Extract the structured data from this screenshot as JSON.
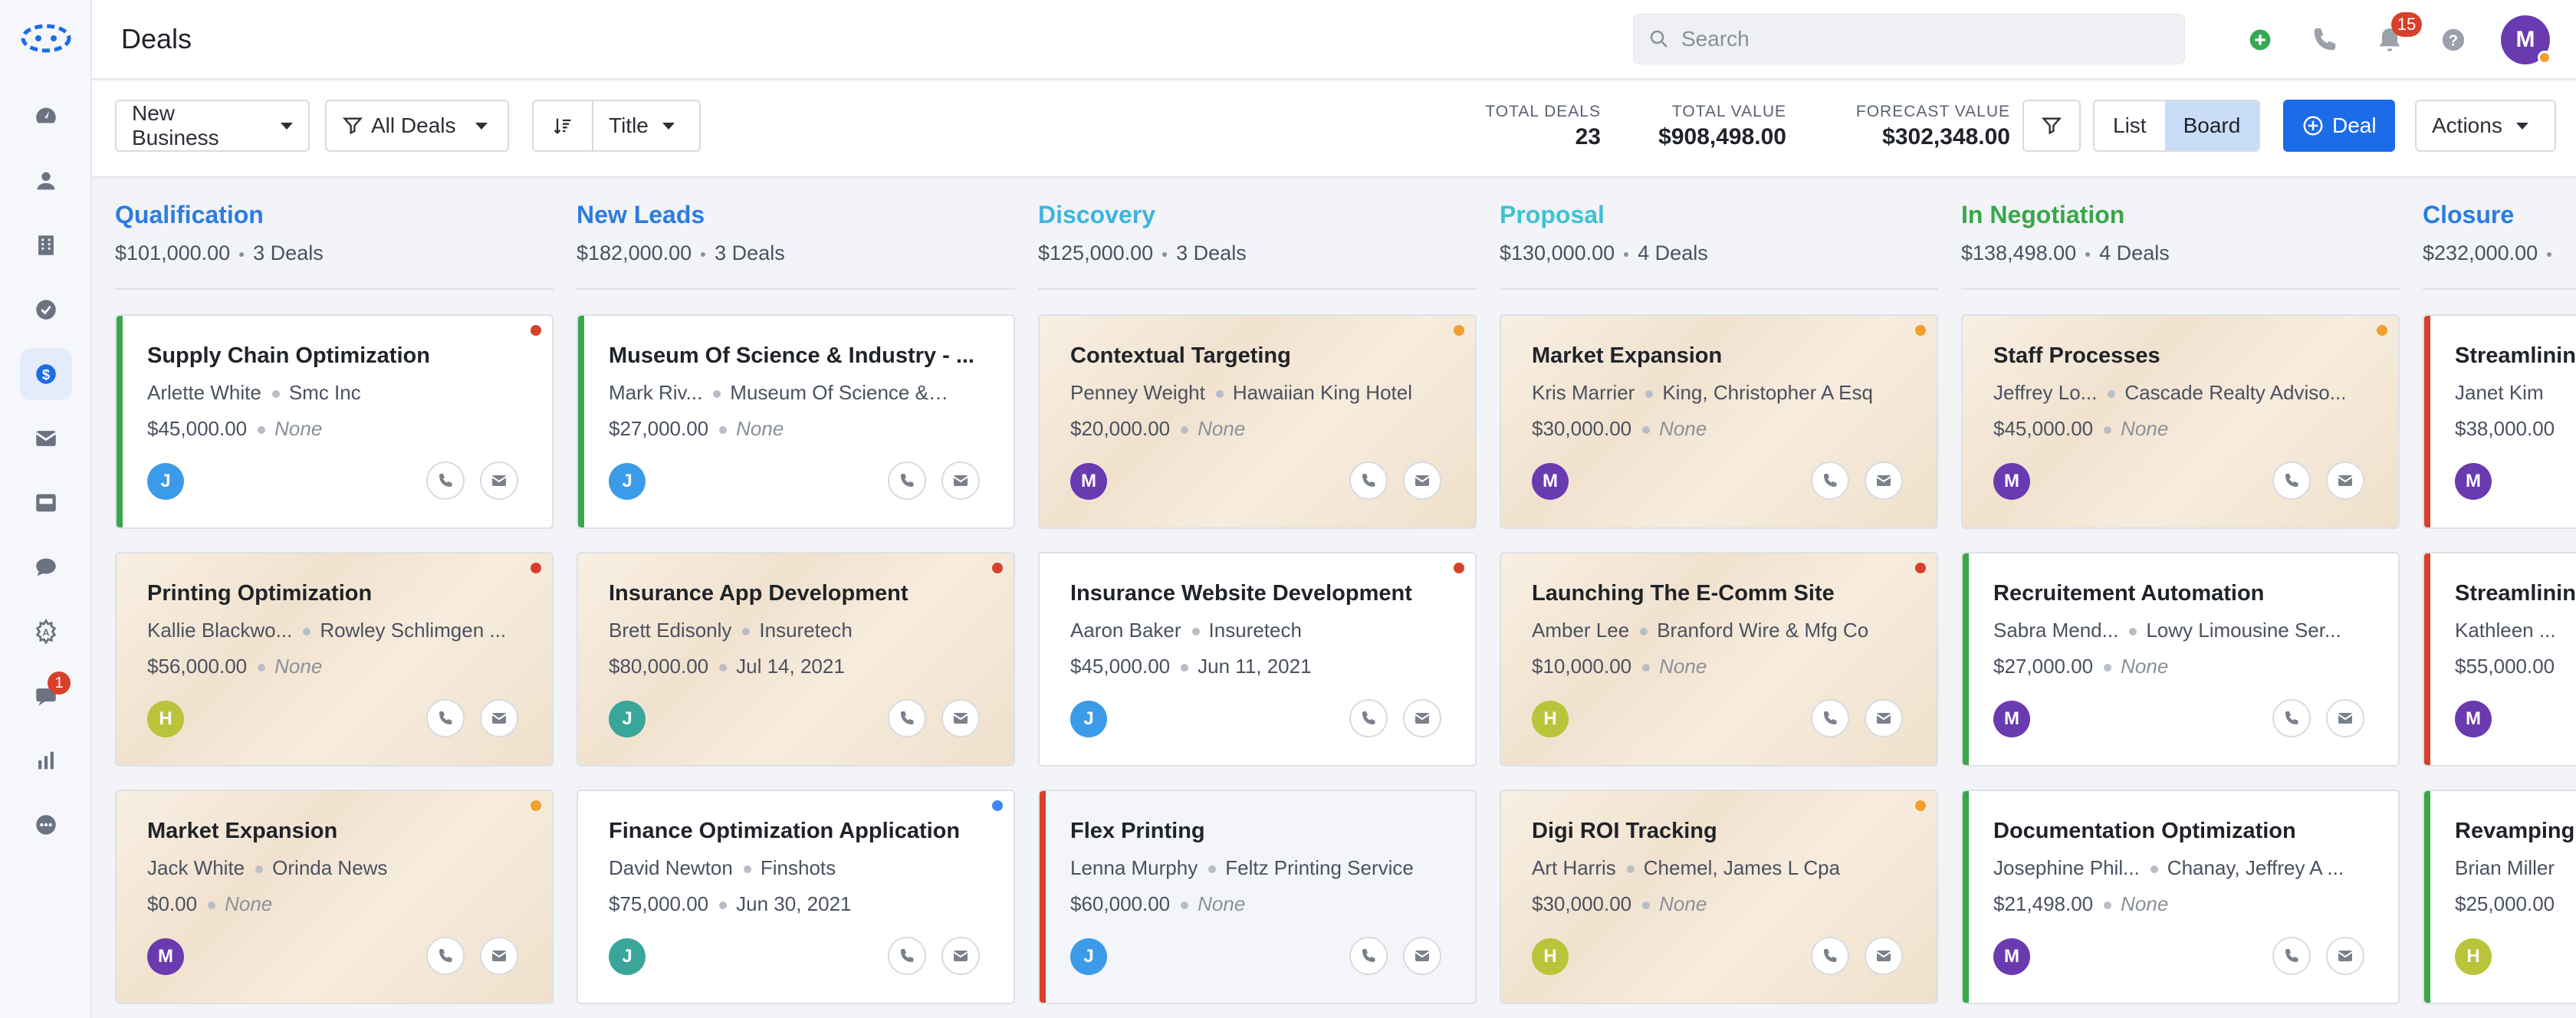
{
  "header": {
    "title": "Deals",
    "search_placeholder": "Search",
    "notifications_count": "15",
    "user_initial": "M"
  },
  "sidebar": {
    "items": [
      {
        "name": "dashboard-icon"
      },
      {
        "name": "contacts-icon"
      },
      {
        "name": "companies-icon"
      },
      {
        "name": "tasks-icon"
      },
      {
        "name": "deals-icon",
        "active": true
      },
      {
        "name": "email-icon"
      },
      {
        "name": "inbox-icon"
      },
      {
        "name": "chat-icon"
      },
      {
        "name": "automation-icon"
      },
      {
        "name": "messages-icon",
        "badge": "1"
      },
      {
        "name": "reports-icon"
      },
      {
        "name": "more-icon"
      }
    ]
  },
  "toolbar": {
    "pipeline": "New Business",
    "filter_view": "All Deals",
    "sort_field": "Title",
    "stats": [
      {
        "label": "TOTAL DEALS",
        "value": "23"
      },
      {
        "label": "TOTAL VALUE",
        "value": "$908,498.00"
      },
      {
        "label": "FORECAST VALUE",
        "value": "$302,348.00"
      }
    ],
    "view_list": "List",
    "view_board": "Board",
    "new_deal": "Deal",
    "actions": "Actions"
  },
  "colors": {
    "accent": "#1c6be8",
    "qualification": "#2d7be0",
    "new_leads": "#2d7be0",
    "discovery": "#3fb3e0",
    "proposal": "#3fc1d6",
    "negotiation": "#3aa64a",
    "closure": "#2d7be0"
  },
  "columns": [
    {
      "title": "Qualification",
      "amount": "$101,000.00",
      "count": "3 Deals",
      "cards": [
        {
          "title": "Supply Chain Optimization",
          "contact": "Arlette White",
          "company": "Smc Inc",
          "value": "$45,000.00",
          "date": "None",
          "avatar": "J",
          "avatar_color": "#3b9be8",
          "stripe": "#3aa64a",
          "dot": "#d8402b",
          "bg": "white"
        },
        {
          "title": "Printing Optimization",
          "contact": "Kallie Blackwo...",
          "company": "Rowley Schlimgen ...",
          "value": "$56,000.00",
          "date": "None",
          "avatar": "H",
          "avatar_color": "#b9c43a",
          "stripe": "",
          "dot": "#d8402b",
          "bg": "parch"
        },
        {
          "title": "Market Expansion",
          "contact": "Jack White",
          "company": "Orinda News",
          "value": "$0.00",
          "date": "None",
          "avatar": "M",
          "avatar_color": "#6a3ab0",
          "stripe": "",
          "dot": "#f0a030",
          "bg": "parch"
        }
      ]
    },
    {
      "title": "New Leads",
      "amount": "$182,000.00",
      "count": "3 Deals",
      "cards": [
        {
          "title": "Museum Of Science & Industry - ...",
          "contact": "Mark Riv...",
          "company": "Museum Of Science & I...",
          "value": "$27,000.00",
          "date": "None",
          "avatar": "J",
          "avatar_color": "#3b9be8",
          "stripe": "#3aa64a",
          "dot": "",
          "bg": "white"
        },
        {
          "title": "Insurance App Development",
          "contact": "Brett Edisonly",
          "company": "Insuretech",
          "value": "$80,000.00",
          "date": "Jul 14, 2021",
          "avatar": "J",
          "avatar_color": "#3aa69a",
          "stripe": "",
          "dot": "#d8402b",
          "bg": "parch"
        },
        {
          "title": "Finance Optimization Application",
          "contact": "David Newton",
          "company": "Finshots",
          "value": "$75,000.00",
          "date": "Jun 30, 2021",
          "avatar": "J",
          "avatar_color": "#3aa69a",
          "stripe": "",
          "dot": "#3b8bf0",
          "bg": "white"
        }
      ]
    },
    {
      "title": "Discovery",
      "amount": "$125,000.00",
      "count": "3 Deals",
      "cards": [
        {
          "title": "Contextual Targeting",
          "contact": "Penney Weight",
          "company": "Hawaiian King Hotel",
          "value": "$20,000.00",
          "date": "None",
          "avatar": "M",
          "avatar_color": "#6a3ab0",
          "stripe": "",
          "dot": "#f0a030",
          "bg": "parch"
        },
        {
          "title": "Insurance Website Development",
          "contact": "Aaron Baker",
          "company": "Insuretech",
          "value": "$45,000.00",
          "date": "Jun 11, 2021",
          "avatar": "J",
          "avatar_color": "#3b9be8",
          "stripe": "",
          "dot": "#d8402b",
          "bg": "white"
        },
        {
          "title": "Flex Printing",
          "contact": "Lenna Murphy",
          "company": "Feltz Printing Service",
          "value": "$60,000.00",
          "date": "None",
          "avatar": "J",
          "avatar_color": "#3b9be8",
          "stripe": "#d8402b",
          "dot": "",
          "bg": "grey"
        }
      ]
    },
    {
      "title": "Proposal",
      "amount": "$130,000.00",
      "count": "4 Deals",
      "cards": [
        {
          "title": "Market Expansion",
          "contact": "Kris Marrier",
          "company": "King, Christopher A Esq",
          "value": "$30,000.00",
          "date": "None",
          "avatar": "M",
          "avatar_color": "#6a3ab0",
          "stripe": "",
          "dot": "#f0a030",
          "bg": "parch"
        },
        {
          "title": "Launching The E-Comm Site",
          "contact": "Amber Lee",
          "company": "Branford Wire & Mfg Co",
          "value": "$10,000.00",
          "date": "None",
          "avatar": "H",
          "avatar_color": "#b9c43a",
          "stripe": "",
          "dot": "#d8402b",
          "bg": "parch"
        },
        {
          "title": "Digi ROI Tracking",
          "contact": "Art Harris",
          "company": "Chemel, James L Cpa",
          "value": "$30,000.00",
          "date": "None",
          "avatar": "H",
          "avatar_color": "#b9c43a",
          "stripe": "",
          "dot": "#f0a030",
          "bg": "parch"
        }
      ]
    },
    {
      "title": "In Negotiation",
      "amount": "$138,498.00",
      "count": "4 Deals",
      "cards": [
        {
          "title": "Staff Processes",
          "contact": "Jeffrey Lo...",
          "company": "Cascade Realty Adviso...",
          "value": "$45,000.00",
          "date": "None",
          "avatar": "M",
          "avatar_color": "#6a3ab0",
          "stripe": "",
          "dot": "#f0a030",
          "bg": "parch"
        },
        {
          "title": "Recruitement Automation",
          "contact": "Sabra Mend...",
          "company": "Lowy Limousine Ser...",
          "value": "$27,000.00",
          "date": "None",
          "avatar": "M",
          "avatar_color": "#6a3ab0",
          "stripe": "#3aa64a",
          "dot": "",
          "bg": "white"
        },
        {
          "title": "Documentation Optimization",
          "contact": "Josephine Phil...",
          "company": "Chanay, Jeffrey A ...",
          "value": "$21,498.00",
          "date": "None",
          "avatar": "M",
          "avatar_color": "#6a3ab0",
          "stripe": "#3aa64a",
          "dot": "",
          "bg": "white"
        }
      ]
    },
    {
      "title": "Closure",
      "amount": "$232,000.00",
      "count": "",
      "cards": [
        {
          "title": "Streamlinin",
          "contact": "Janet Kim",
          "company": "",
          "value": "$38,000.00",
          "date": "",
          "avatar": "M",
          "avatar_color": "#6a3ab0",
          "stripe": "#d8402b",
          "dot": "",
          "bg": "white"
        },
        {
          "title": "Streamlinin",
          "contact": "Kathleen ...",
          "company": "",
          "value": "$55,000.00",
          "date": "",
          "avatar": "M",
          "avatar_color": "#6a3ab0",
          "stripe": "#d8402b",
          "dot": "",
          "bg": "white"
        },
        {
          "title": "Revamping",
          "contact": "Brian Miller",
          "company": "",
          "value": "$25,000.00",
          "date": "",
          "avatar": "H",
          "avatar_color": "#b9c43a",
          "stripe": "#3aa64a",
          "dot": "",
          "bg": "white"
        }
      ]
    }
  ]
}
